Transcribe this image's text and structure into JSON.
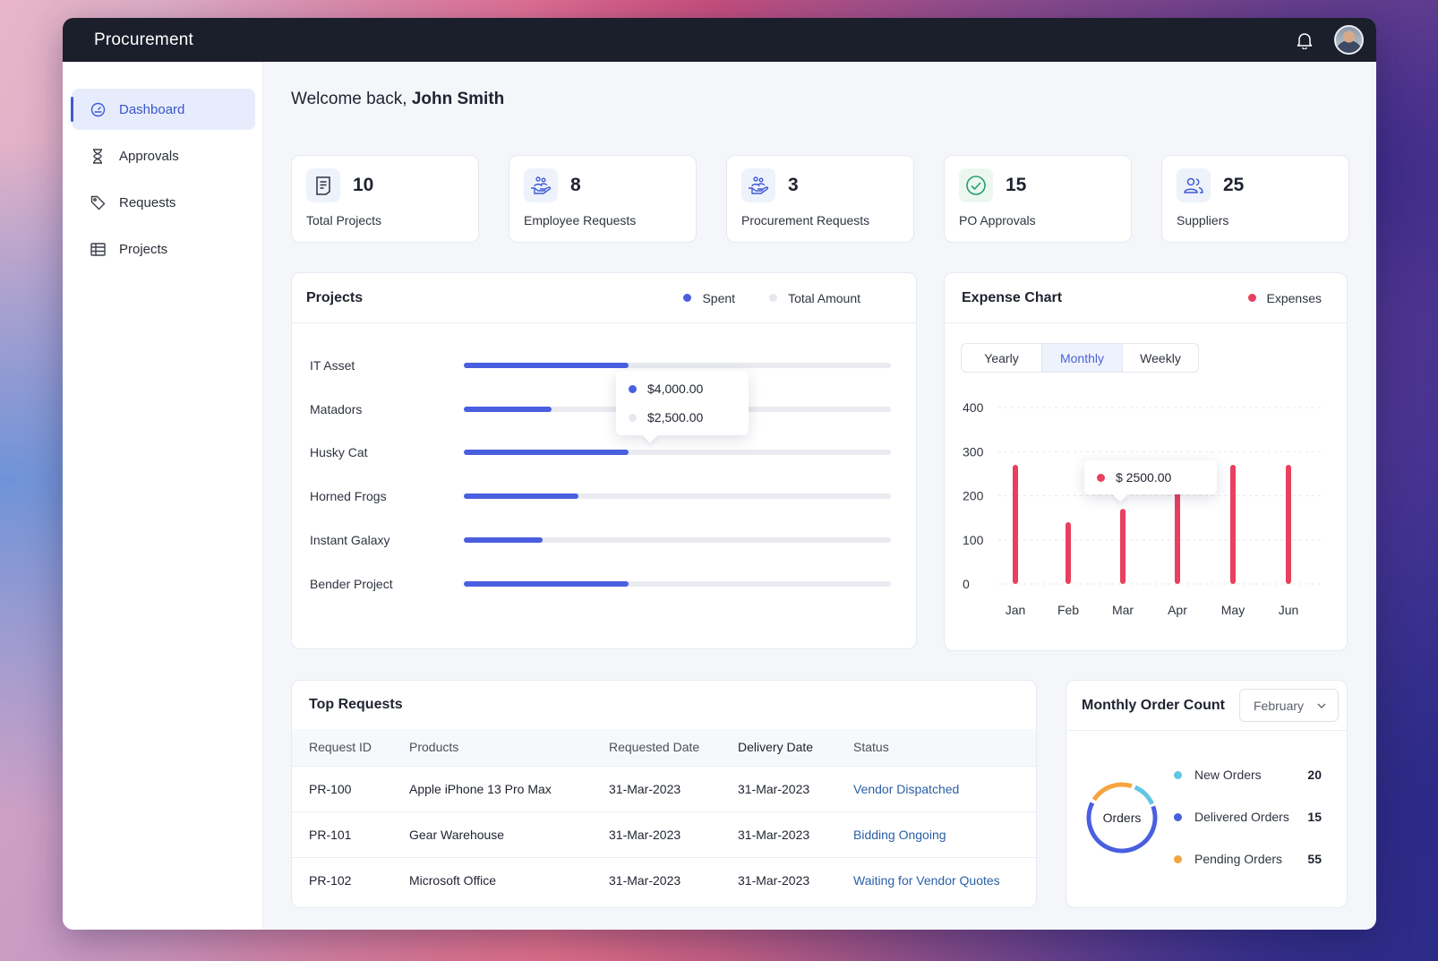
{
  "app": {
    "title": "Procurement"
  },
  "sidebar": {
    "items": [
      {
        "label": "Dashboard",
        "icon": "dashboard-icon",
        "active": true
      },
      {
        "label": "Approvals",
        "icon": "hourglass-icon"
      },
      {
        "label": "Requests",
        "icon": "tag-icon"
      },
      {
        "label": "Projects",
        "icon": "projects-icon"
      }
    ]
  },
  "welcome": {
    "prefix": "Welcome back,",
    "name": "John Smith"
  },
  "stats": [
    {
      "value": "10",
      "label": "Total Projects",
      "icon": "document-icon"
    },
    {
      "value": "8",
      "label": "Employee Requests",
      "icon": "hand-people-icon"
    },
    {
      "value": "3",
      "label": "Procurement Requests",
      "icon": "hand-people-icon"
    },
    {
      "value": "15",
      "label": "PO Approvals",
      "icon": "check-circle-icon"
    },
    {
      "value": "25",
      "label": "Suppliers",
      "icon": "users-icon"
    }
  ],
  "projects_panel": {
    "title": "Projects",
    "legend": {
      "spent": "Spent",
      "total": "Total Amount"
    },
    "colors": {
      "spent": "#4a5fe0",
      "total": "#e9ebf0"
    },
    "rows": [
      {
        "name": "IT Asset",
        "fraction": 0.385
      },
      {
        "name": "Matadors",
        "fraction": 0.205
      },
      {
        "name": "Husky Cat",
        "fraction": 0.385
      },
      {
        "name": "Horned Frogs",
        "fraction": 0.268
      },
      {
        "name": "Instant Galaxy",
        "fraction": 0.185
      },
      {
        "name": "Bender Project",
        "fraction": 0.385
      }
    ],
    "tooltip": {
      "spent": "$4,000.00",
      "total": "$2,500.00"
    }
  },
  "expense_panel": {
    "title": "Expense Chart",
    "legend": "Expenses",
    "tabs": [
      "Yearly",
      "Monthly",
      "Weekly"
    ],
    "active_tab": "Monthly",
    "tooltip": "$ 2500.00"
  },
  "chart_data": {
    "type": "bar",
    "categories": [
      "Jan",
      "Feb",
      "Mar",
      "Apr",
      "May",
      "Jun"
    ],
    "series": [
      {
        "name": "Expenses",
        "values": [
          270,
          140,
          170,
          210,
          270,
          270
        ],
        "color": "#e8405e"
      }
    ],
    "yticks": [
      0,
      100,
      200,
      300,
      400
    ],
    "ylim": [
      0,
      400
    ],
    "grid": true,
    "legend_position": "top-right"
  },
  "requests_panel": {
    "title": "Top Requests",
    "columns": [
      "Request ID",
      "Products",
      "Requested Date",
      "Delivery Date",
      "Status"
    ],
    "rows": [
      [
        "PR-100",
        "Apple iPhone 13 Pro Max",
        "31-Mar-2023",
        "31-Mar-2023",
        "Vendor Dispatched"
      ],
      [
        "PR-101",
        "Gear Warehouse",
        "31-Mar-2023",
        "31-Mar-2023",
        "Bidding Ongoing"
      ],
      [
        "PR-102",
        "Microsoft Office",
        "31-Mar-2023",
        "31-Mar-2023",
        "Waiting for Vendor Quotes"
      ]
    ]
  },
  "orders_panel": {
    "title": "Monthly Order Count",
    "month": "February",
    "center_label": "Orders",
    "legend": [
      {
        "label": "New Orders",
        "value": 20,
        "color": "#5fc6e3"
      },
      {
        "label": "Delivered Orders",
        "value": 15,
        "color": "#4a5fe0"
      },
      {
        "label": "Pending Orders",
        "value": 55,
        "color": "#f5a441"
      }
    ]
  }
}
